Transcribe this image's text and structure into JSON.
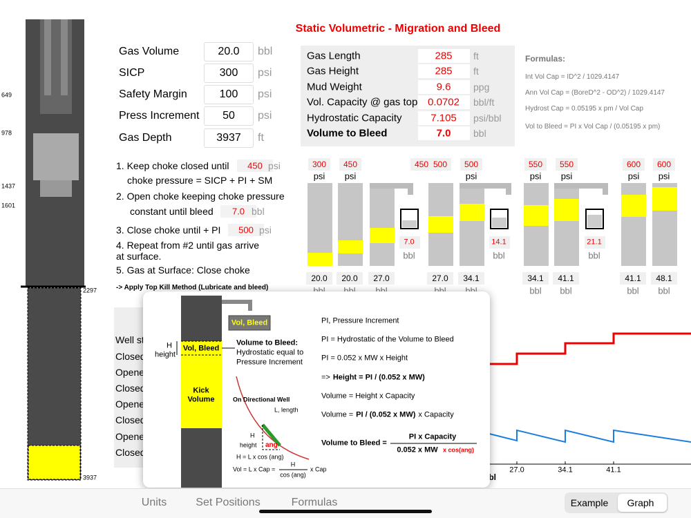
{
  "title": "Static Volumetric - Migration and Bleed",
  "well": {
    "depths": [
      "649",
      "978",
      "1437",
      "1601",
      "2297",
      "3937"
    ]
  },
  "inputs": [
    {
      "label": "Gas Volume",
      "value": "20.0",
      "unit": "bbl"
    },
    {
      "label": "SICP",
      "value": "300",
      "unit": "psi"
    },
    {
      "label": "Safety Margin",
      "value": "100",
      "unit": "psi"
    },
    {
      "label": "Press Increment",
      "value": "50",
      "unit": "psi"
    },
    {
      "label": "Gas Depth",
      "value": "3937",
      "unit": "ft"
    }
  ],
  "results": [
    {
      "label": "Gas Length",
      "value": "285",
      "unit": "ft"
    },
    {
      "label": "Gas Height",
      "value": "285",
      "unit": "ft"
    },
    {
      "label": "Mud Weight",
      "value": "9.6",
      "unit": "ppg"
    },
    {
      "label": "Vol. Capacity @ gas top",
      "value": "0.0702",
      "unit": "bbl/ft"
    },
    {
      "label": "Hydrostatic Capacity",
      "value": "7.105",
      "unit": "psi/bbl"
    },
    {
      "label": "Volume to Bleed",
      "value": "7.0",
      "unit": "bbl",
      "bold": true
    }
  ],
  "formulas": {
    "title": "Formulas:",
    "lines": [
      "Int Vol Cap = ID^2 / 1029.4147",
      "Ann Vol Cap = (BoreD^2 - OD^2) / 1029.4147",
      "Hydrost Cap = 0.05195 x pm / Vol Cap",
      "Vol to Bleed = PI x Vol Cap / (0.05195 x pm)"
    ]
  },
  "steps": [
    {
      "text": "1. Keep choke closed until",
      "value": "450",
      "unit": "psi"
    },
    {
      "text": "choke pressure = SICP + PI + SM"
    },
    {
      "text": "2. Open choke keeping choke pressure"
    },
    {
      "text": "constant until bleed",
      "value": "7.0",
      "unit": "bbl"
    },
    {
      "text": "3. Close choke until + PI",
      "value": "500",
      "unit": "psi"
    },
    {
      "text": "4. Repeat from #2 until gas arrive"
    },
    {
      "text": "at surface."
    },
    {
      "text": "5. Gas at Surface: Close choke"
    },
    {
      "text": "-> Apply Top Kill Method (Lubricate and bleed)"
    }
  ],
  "gauges": [
    {
      "pressure": "300",
      "pressure_unit": "psi",
      "volume": "20.0",
      "volume_unit": "bbl"
    },
    {
      "pressure": "450",
      "pressure_unit": "psi",
      "volume": "20.0",
      "volume_unit": "bbl"
    },
    {
      "pressure": "450",
      "volume": "27.0",
      "volume_unit": "bbl"
    },
    {
      "pressure": "500",
      "volume": "27.0",
      "volume_unit": "bbl"
    },
    {
      "pressure": "500",
      "pressure_unit": "psi",
      "volume": "34.1",
      "volume_unit": "bbl"
    },
    {
      "pressure": "550",
      "pressure_unit": "psi",
      "volume": "34.1",
      "volume_unit": "bbl"
    },
    {
      "pressure": "550",
      "pressure_unit": "psi",
      "volume": "41.1",
      "volume_unit": "bbl"
    },
    {
      "pressure": "600",
      "pressure_unit": "psi",
      "volume": "41.1",
      "volume_unit": "bbl"
    },
    {
      "pressure": "600",
      "pressure_unit": "psi",
      "volume": "48.1",
      "volume_unit": "bbl"
    }
  ],
  "bleeds": [
    {
      "value": "7.0",
      "unit": "bbl"
    },
    {
      "value": "14.1",
      "unit": "bbl"
    },
    {
      "value": "21.1",
      "unit": "bbl"
    }
  ],
  "status_table": [
    "Well st",
    "Closed",
    "Opene",
    "Closed",
    "Opene",
    "Closed",
    "Opene",
    "Closed"
  ],
  "graph": {
    "x_ticks": [
      "27.0",
      "34.1",
      "41.1"
    ],
    "x_label": "bbl"
  },
  "popup": {
    "pit_label": "Vol, Bleed",
    "band_label": "Vol, Bleed",
    "h": "H",
    "height": "height",
    "vtb_title": "Volume to Bleed:",
    "vtb_line1": "Hydrostatic equal to",
    "vtb_line2": "Pressure Increment",
    "kick1": "Kick",
    "kick2": "Volume",
    "directional": "On Directional Well",
    "length": "L, length",
    "h2": "H",
    "height2": "height",
    "ang": "ang",
    "h_eq": "H = L x cos (ang)",
    "vol_eq": "Vol = L x Cap =",
    "frac_num": "H",
    "frac_den": "cos (ang)",
    "x_cap": "x Cap",
    "lines": [
      [
        {
          "text": "PI, Pressure Increment"
        }
      ],
      [
        {
          "text": "PI = Hydrostatic of the Volume to Bleed"
        }
      ],
      [
        {
          "text": "PI = 0.052 x MW x Height"
        }
      ],
      [
        {
          "text": "=>"
        },
        {
          "text": "Height = PI / (0.052 x MW)",
          "bold": true
        }
      ],
      [
        {
          "text": "Volume = Height x Capacity"
        }
      ],
      [
        {
          "text": "Volume ="
        },
        {
          "text": "PI / (0.052 x MW)",
          "bold": true
        },
        {
          "text": "x Capacity"
        }
      ]
    ],
    "final_label": "Volume to Bleed =",
    "final_num": "PI x Capacity",
    "final_den": "0.052 x MW",
    "final_cos": "x cos(ang)"
  },
  "toolbar": {
    "tabs": [
      "Units",
      "Set Positions",
      "Formulas"
    ],
    "segments": [
      "Example",
      "Graph"
    ]
  }
}
